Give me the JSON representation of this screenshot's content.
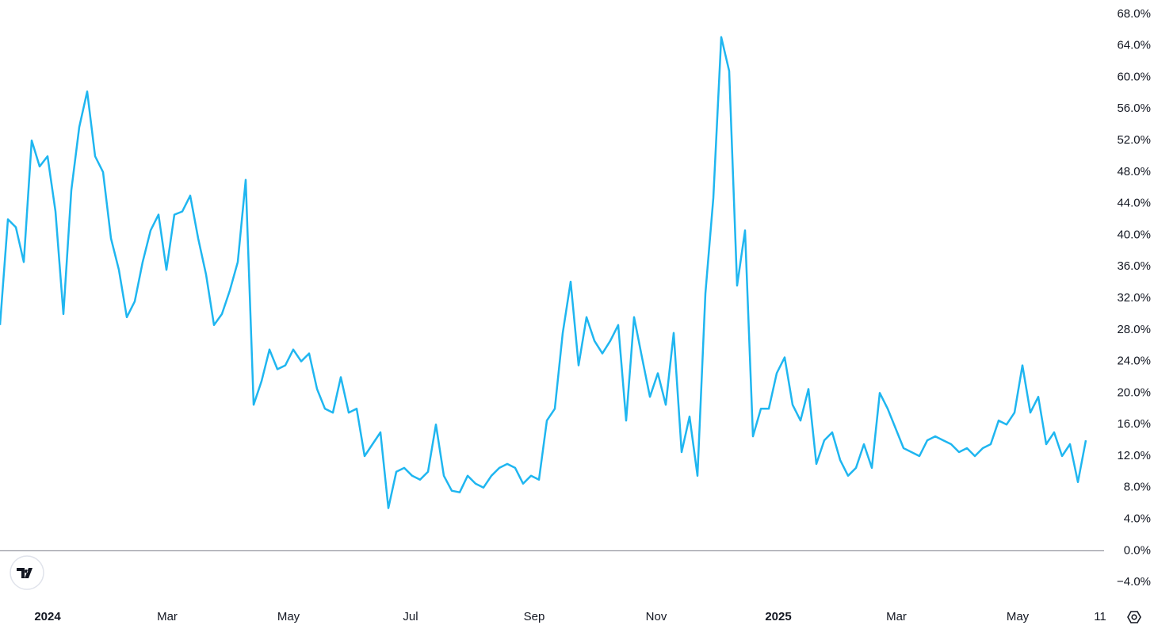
{
  "chart_data": {
    "type": "line",
    "color": "#1fb6f0",
    "grid": false,
    "values": [
      28.6,
      42,
      41,
      36.6,
      52,
      48.7,
      50,
      43,
      30,
      45.7,
      53.7,
      58.2,
      50,
      48,
      39.6,
      35.6,
      29.6,
      31.6,
      36.6,
      40.6,
      42.6,
      35.6,
      42.6,
      43,
      45,
      39.6,
      35,
      28.6,
      30,
      33,
      36.6,
      47,
      18.5,
      21.5,
      25.5,
      23,
      23.5,
      25.5,
      24,
      25,
      20.5,
      18,
      17.5,
      22,
      17.5,
      18,
      12,
      13.5,
      15,
      5.4,
      10,
      10.5,
      9.5,
      9,
      10,
      16,
      9.5,
      7.6,
      7.4,
      9.5,
      8.5,
      8,
      9.5,
      10.5,
      11,
      10.5,
      8.5,
      9.5,
      9,
      16.5,
      18,
      27.6,
      34.1,
      23.5,
      29.6,
      26.6,
      25,
      26.6,
      28.6,
      16.5,
      29.6,
      24.5,
      19.5,
      22.5,
      18.5,
      27.6,
      12.5,
      17,
      9.5,
      32.6,
      44.7,
      65.1,
      60.8,
      33.6,
      40.6,
      14.5,
      18,
      18,
      22.5,
      24.5,
      18.5,
      16.5,
      20.5,
      11,
      14,
      15,
      11.5,
      9.5,
      10.5,
      13.5,
      10.5,
      20,
      18,
      15.5,
      13,
      12.5,
      12,
      14,
      14.5,
      14,
      13.5,
      12.5,
      13,
      12,
      13,
      13.5,
      16.5,
      16,
      17.5,
      23.5,
      17.5,
      19.5,
      13.5,
      15,
      12,
      13.5,
      8.7,
      14
    ],
    "xlim": [
      0,
      139.3
    ],
    "xticks": [
      {
        "value": 6.0,
        "label": "2024"
      },
      {
        "value": 21.1,
        "label": "Mar"
      },
      {
        "value": 36.4,
        "label": "May"
      },
      {
        "value": 51.8,
        "label": "Jul"
      },
      {
        "value": 67.4,
        "label": "Sep"
      },
      {
        "value": 82.8,
        "label": "Nov"
      },
      {
        "value": 98.2,
        "label": "2025"
      },
      {
        "value": 113.1,
        "label": "Mar"
      },
      {
        "value": 128.4,
        "label": "May"
      },
      {
        "value": 138.8,
        "label": "11"
      }
    ],
    "ylim": [
      -6.1,
      69.8
    ],
    "yticks": [
      {
        "value": -4,
        "label": "−4.0%"
      },
      {
        "value": 0,
        "label": "0.0%"
      },
      {
        "value": 4,
        "label": "4.0%"
      },
      {
        "value": 8,
        "label": "8.0%"
      },
      {
        "value": 12,
        "label": "12.0%"
      },
      {
        "value": 16,
        "label": "16.0%"
      },
      {
        "value": 20,
        "label": "20.0%"
      },
      {
        "value": 24,
        "label": "24.0%"
      },
      {
        "value": 28,
        "label": "28.0%"
      },
      {
        "value": 32,
        "label": "32.0%"
      },
      {
        "value": 36,
        "label": "36.0%"
      },
      {
        "value": 40,
        "label": "40.0%"
      },
      {
        "value": 44,
        "label": "44.0%"
      },
      {
        "value": 48,
        "label": "48.0%"
      },
      {
        "value": 52,
        "label": "52.0%"
      },
      {
        "value": 56,
        "label": "56.0%"
      },
      {
        "value": 60,
        "label": "60.0%"
      },
      {
        "value": 64,
        "label": "64.0%"
      },
      {
        "value": 68,
        "label": "68.0%"
      }
    ]
  }
}
